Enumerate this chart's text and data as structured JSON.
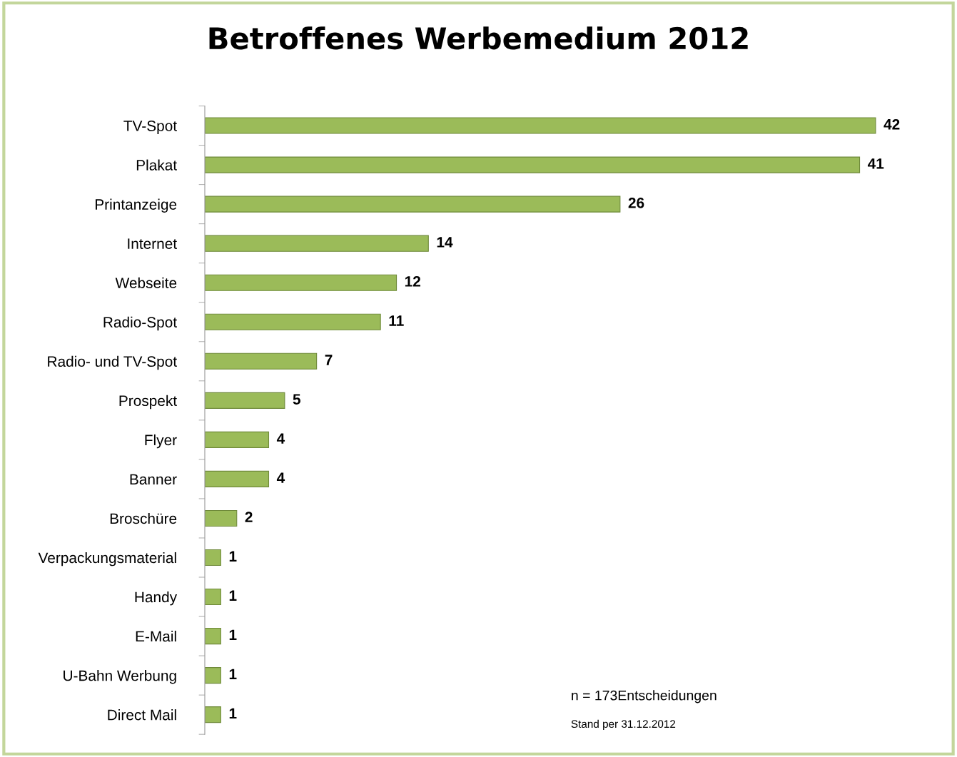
{
  "chart_data": {
    "type": "bar",
    "orientation": "horizontal",
    "title": "Betroffenes Werbemedium 2012",
    "categories": [
      "TV-Spot",
      "Plakat",
      "Printanzeige",
      "Internet",
      "Webseite",
      "Radio-Spot",
      "Radio- und TV-Spot",
      "Prospekt",
      "Flyer",
      "Banner",
      "Broschüre",
      "Verpackungsmaterial",
      "Handy",
      "E-Mail",
      "U-Bahn Werbung",
      "Direct Mail"
    ],
    "values": [
      42,
      41,
      26,
      14,
      12,
      11,
      7,
      5,
      4,
      4,
      2,
      1,
      1,
      1,
      1,
      1
    ],
    "color": "#9bbb59",
    "data_labels": true,
    "annotations": [
      "n = 173Entscheidungen",
      "Stand per 31.12.2012"
    ]
  }
}
